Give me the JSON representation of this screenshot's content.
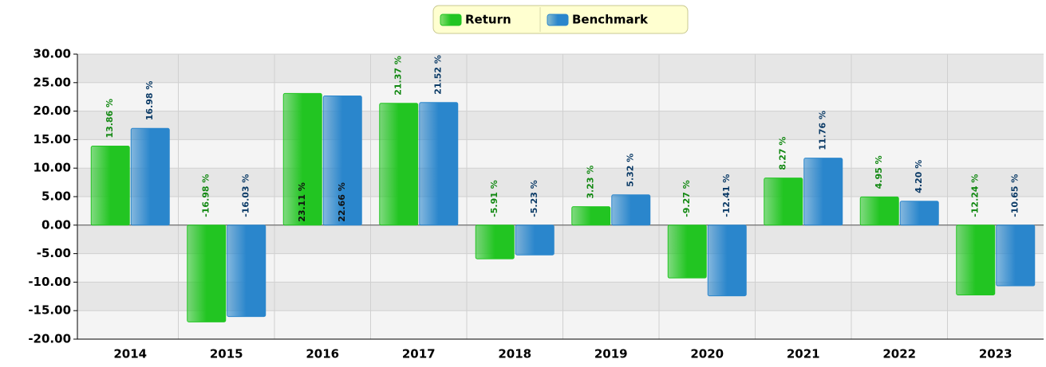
{
  "chart_data": {
    "type": "bar",
    "categories": [
      "2014",
      "2015",
      "2016",
      "2017",
      "2018",
      "2019",
      "2020",
      "2021",
      "2022",
      "2023"
    ],
    "series": [
      {
        "name": "Return",
        "color": "#22c522",
        "label_color": "#118811",
        "values": [
          13.86,
          -16.98,
          23.11,
          21.37,
          -5.91,
          3.23,
          -9.27,
          8.27,
          4.95,
          -12.24
        ],
        "value_labels": [
          "13.86 %",
          "-16.98 %",
          "23.11 %",
          "21.37 %",
          "-5.91 %",
          "3.23 %",
          "-9.27 %",
          "8.27 %",
          "4.95 %",
          "-12.24 %"
        ]
      },
      {
        "name": "Benchmark",
        "color": "#2a86cc",
        "label_color": "#0a3a66",
        "values": [
          16.98,
          -16.03,
          22.66,
          21.52,
          -5.23,
          5.32,
          -12.41,
          11.76,
          4.2,
          -10.65
        ],
        "value_labels": [
          "16.98 %",
          "-16.03 %",
          "22.66 %",
          "21.52 %",
          "-5.23 %",
          "5.32 %",
          "-12.41 %",
          "11.76 %",
          "4.20 %",
          "-10.65 %"
        ]
      }
    ],
    "ylim": [
      -20,
      30
    ],
    "yticks": [
      {
        "value": -20,
        "label": "-20.00"
      },
      {
        "value": -15,
        "label": "-15.00"
      },
      {
        "value": -10,
        "label": "-10.00"
      },
      {
        "value": -5,
        "label": "-5.00"
      },
      {
        "value": 0,
        "label": "0.00"
      },
      {
        "value": 5,
        "label": "5.00"
      },
      {
        "value": 10,
        "label": "10.00"
      },
      {
        "value": 15,
        "label": "15.00"
      },
      {
        "value": 20,
        "label": "20.00"
      },
      {
        "value": 25,
        "label": "25.00"
      },
      {
        "value": 30,
        "label": "30.00"
      }
    ],
    "grid": true,
    "legend": "top"
  }
}
